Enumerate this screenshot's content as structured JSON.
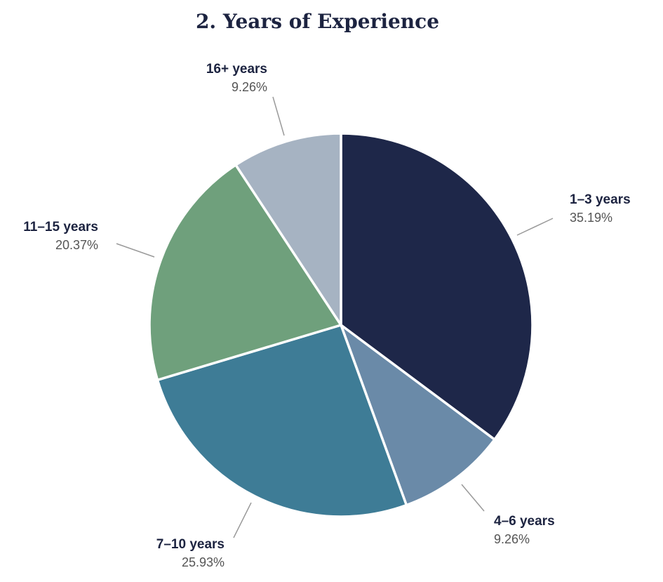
{
  "chart_data": {
    "type": "pie",
    "title": "2. Years of Experience",
    "slices": [
      {
        "label": "1–3 years",
        "value": 35.19,
        "value_label": "35.19%",
        "color": "#1e2749"
      },
      {
        "label": "4–6 years",
        "value": 9.26,
        "value_label": "9.26%",
        "color": "#6a8aa8"
      },
      {
        "label": "7–10 years",
        "value": 25.93,
        "value_label": "25.93%",
        "color": "#3e7c96"
      },
      {
        "label": "11–15 years",
        "value": 20.37,
        "value_label": "20.37%",
        "color": "#6fa07c"
      },
      {
        "label": "16+ years",
        "value": 9.26,
        "value_label": "9.26%",
        "color": "#a6b3c2"
      }
    ],
    "start_angle": "12 o'clock",
    "direction": "clockwise"
  }
}
